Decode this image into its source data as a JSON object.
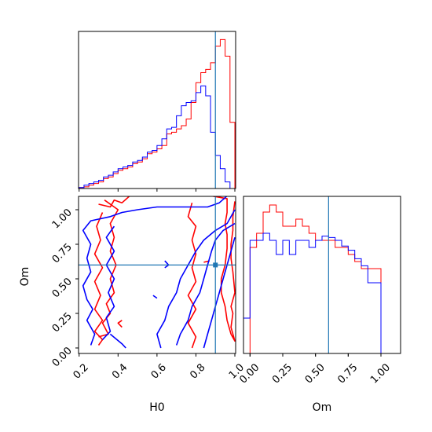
{
  "chart_data": [
    {
      "panel": "H0 marginal",
      "type": "histogram",
      "bins": [
        0.2,
        0.225,
        0.25,
        0.275,
        0.3,
        0.325,
        0.35,
        0.375,
        0.4,
        0.425,
        0.45,
        0.475,
        0.5,
        0.525,
        0.55,
        0.575,
        0.6,
        0.625,
        0.65,
        0.675,
        0.7,
        0.725,
        0.75,
        0.775,
        0.8,
        0.825,
        0.85,
        0.875,
        0.9,
        0.925,
        0.95,
        0.975,
        1.0
      ],
      "series": [
        {
          "color": "#ff0000",
          "values": [
            0.3,
            0.5,
            1,
            1.5,
            2,
            3,
            3.5,
            4.5,
            5.5,
            6,
            6.5,
            7.5,
            8,
            9,
            10.5,
            11,
            12,
            13,
            16.5,
            17,
            18,
            19,
            21,
            26,
            32,
            35,
            36,
            38,
            43,
            45,
            40,
            20
          ]
        },
        {
          "color": "#0000ff",
          "values": [
            0.3,
            1,
            1.5,
            2,
            2.5,
            3.5,
            4,
            5,
            6,
            6.5,
            7,
            8,
            8.5,
            9.5,
            11,
            11.5,
            13,
            15,
            18,
            18.5,
            22,
            25,
            26,
            26.5,
            29,
            31,
            28,
            17,
            10,
            6,
            2,
            0
          ]
        }
      ],
      "truth": 0.9
    },
    {
      "panel": "Om marginal",
      "type": "histogram",
      "bins": [
        -0.05,
        0.0,
        0.05,
        0.1,
        0.15,
        0.2,
        0.25,
        0.3,
        0.35,
        0.4,
        0.45,
        0.5,
        0.55,
        0.6,
        0.65,
        0.7,
        0.75,
        0.8,
        0.85,
        0.9,
        0.95,
        1.0,
        1.05,
        1.1
      ],
      "series": [
        {
          "color": "#ff0000",
          "values": [
            0,
            7.5,
            8.5,
            10,
            10.5,
            10,
            9,
            9,
            9.5,
            9,
            8.5,
            8,
            8,
            8,
            7.5,
            7.5,
            7,
            6.5,
            6,
            6,
            6,
            0,
            0
          ]
        },
        {
          "color": "#0000ff",
          "values": [
            2.5,
            8,
            8,
            8.5,
            8,
            7,
            8,
            7,
            8,
            8,
            7.5,
            8,
            8.3,
            8.2,
            8,
            7.6,
            7.3,
            6.7,
            6.2,
            5,
            5,
            0,
            0
          ]
        }
      ],
      "truth": 0.6
    },
    {
      "panel": "H0 vs Om",
      "type": "contour",
      "series": [
        {
          "color": "#ff0000",
          "contours": [
            [
              [
                0.3,
                1.04
              ],
              [
                0.36,
                1.02
              ],
              [
                0.38,
                1.07
              ],
              [
                0.42,
                1.05
              ],
              [
                0.46,
                1.1
              ],
              [
                0.6,
                1.1
              ],
              [
                0.7,
                1.1
              ],
              [
                0.8,
                1.1
              ],
              [
                0.88,
                1.1
              ],
              [
                0.96,
                1.08
              ],
              [
                0.96,
                0.98
              ],
              [
                0.95,
                0.9
              ],
              [
                0.96,
                0.82
              ],
              [
                0.96,
                0.72
              ],
              [
                0.95,
                0.6
              ],
              [
                0.93,
                0.5
              ],
              [
                0.93,
                0.4
              ],
              [
                0.95,
                0.3
              ],
              [
                0.96,
                0.2
              ],
              [
                0.98,
                0.1
              ],
              [
                1.0,
                0.05
              ],
              [
                0.98,
                0.15
              ],
              [
                0.99,
                0.25
              ],
              [
                0.98,
                0.3
              ],
              [
                1.0,
                0.4
              ],
              [
                0.99,
                0.55
              ],
              [
                0.98,
                0.65
              ],
              [
                0.98,
                0.75
              ],
              [
                0.99,
                0.85
              ],
              [
                0.99,
                0.95
              ],
              [
                1.0,
                1.06
              ]
            ],
            [
              [
                0.3,
                0.08
              ],
              [
                0.35,
                0.1
              ],
              [
                0.32,
                0.18
              ],
              [
                0.36,
                0.25
              ],
              [
                0.34,
                0.32
              ],
              [
                0.38,
                0.4
              ],
              [
                0.36,
                0.5
              ],
              [
                0.39,
                0.6
              ],
              [
                0.36,
                0.7
              ],
              [
                0.38,
                0.8
              ],
              [
                0.36,
                0.9
              ],
              [
                0.4,
                1.0
              ],
              [
                0.33,
                1.07
              ]
            ],
            [
              [
                0.3,
                0.02
              ],
              [
                0.32,
                0.06
              ],
              [
                0.28,
                0.12
              ],
              [
                0.32,
                0.2
              ],
              [
                0.28,
                0.28
              ],
              [
                0.31,
                0.38
              ],
              [
                0.28,
                0.48
              ],
              [
                0.32,
                0.58
              ],
              [
                0.28,
                0.68
              ],
              [
                0.31,
                0.78
              ],
              [
                0.29,
                0.88
              ],
              [
                0.32,
                0.98
              ]
            ],
            [
              [
                0.78,
                1.05
              ],
              [
                0.76,
                0.95
              ],
              [
                0.8,
                0.88
              ],
              [
                0.78,
                0.78
              ],
              [
                0.8,
                0.68
              ],
              [
                0.78,
                0.58
              ],
              [
                0.8,
                0.48
              ],
              [
                0.76,
                0.38
              ],
              [
                0.8,
                0.28
              ],
              [
                0.76,
                0.18
              ],
              [
                0.8,
                0.08
              ],
              [
                0.78,
                0.0
              ]
            ],
            [
              [
                0.42,
                0.15
              ],
              [
                0.4,
                0.18
              ],
              [
                0.42,
                0.2
              ]
            ],
            [
              [
                0.84,
                0.62
              ],
              [
                0.87,
                0.63
              ]
            ]
          ]
        },
        {
          "color": "#0000ff",
          "contours": [
            [
              [
                0.26,
                0.02
              ],
              [
                0.28,
                0.1
              ],
              [
                0.24,
                0.2
              ],
              [
                0.27,
                0.28
              ],
              [
                0.24,
                0.35
              ],
              [
                0.22,
                0.45
              ],
              [
                0.26,
                0.55
              ],
              [
                0.24,
                0.65
              ],
              [
                0.26,
                0.75
              ],
              [
                0.22,
                0.85
              ],
              [
                0.26,
                0.92
              ],
              [
                0.36,
                0.95
              ],
              [
                0.42,
                0.98
              ],
              [
                0.5,
                1.0
              ],
              [
                0.6,
                1.02
              ],
              [
                0.7,
                1.02
              ],
              [
                0.78,
                1.02
              ],
              [
                0.86,
                1.02
              ],
              [
                0.92,
                1.05
              ],
              [
                0.96,
                1.1
              ],
              [
                1.0,
                1.12
              ]
            ],
            [
              [
                0.32,
                0.06
              ],
              [
                0.36,
                0.12
              ],
              [
                0.34,
                0.22
              ],
              [
                0.38,
                0.3
              ],
              [
                0.35,
                0.4
              ],
              [
                0.38,
                0.5
              ],
              [
                0.34,
                0.6
              ],
              [
                0.38,
                0.7
              ],
              [
                0.34,
                0.8
              ],
              [
                0.38,
                0.88
              ]
            ],
            [
              [
                0.36,
                0.1
              ],
              [
                0.42,
                0.03
              ],
              [
                0.44,
                0.0
              ]
            ],
            [
              [
                0.62,
                0.0
              ],
              [
                0.6,
                0.1
              ],
              [
                0.64,
                0.2
              ],
              [
                0.66,
                0.3
              ],
              [
                0.7,
                0.4
              ],
              [
                0.72,
                0.5
              ],
              [
                0.76,
                0.6
              ],
              [
                0.8,
                0.7
              ],
              [
                0.84,
                0.78
              ],
              [
                0.9,
                0.85
              ],
              [
                0.96,
                0.9
              ],
              [
                1.0,
                1.0
              ]
            ],
            [
              [
                0.7,
                0.02
              ],
              [
                0.72,
                0.1
              ],
              [
                0.76,
                0.2
              ],
              [
                0.78,
                0.3
              ],
              [
                0.82,
                0.4
              ],
              [
                0.84,
                0.5
              ],
              [
                0.86,
                0.6
              ],
              [
                0.88,
                0.7
              ],
              [
                0.9,
                0.78
              ],
              [
                0.94,
                0.85
              ],
              [
                1.0,
                0.9
              ]
            ],
            [
              [
                0.84,
                0.0
              ],
              [
                0.86,
                0.1
              ],
              [
                0.88,
                0.2
              ],
              [
                0.9,
                0.3
              ],
              [
                0.92,
                0.4
              ],
              [
                0.94,
                0.5
              ],
              [
                0.96,
                0.6
              ],
              [
                0.98,
                0.7
              ],
              [
                1.0,
                0.8
              ]
            ],
            [
              [
                0.64,
                0.63
              ],
              [
                0.66,
                0.6
              ],
              [
                0.64,
                0.58
              ]
            ],
            [
              [
                0.58,
                0.38
              ],
              [
                0.6,
                0.36
              ]
            ]
          ]
        }
      ],
      "truth": {
        "H0": 0.9,
        "Om": 0.6
      }
    }
  ],
  "axes": {
    "h0_label": "H0",
    "om_ylabel": "Om",
    "om_xlabel": "Om",
    "h0_ticks": [
      "0.2",
      "0.4",
      "0.6",
      "0.8",
      "1.0"
    ],
    "om_ticks": [
      "0.00",
      "0.25",
      "0.50",
      "0.75",
      "1.00"
    ]
  }
}
